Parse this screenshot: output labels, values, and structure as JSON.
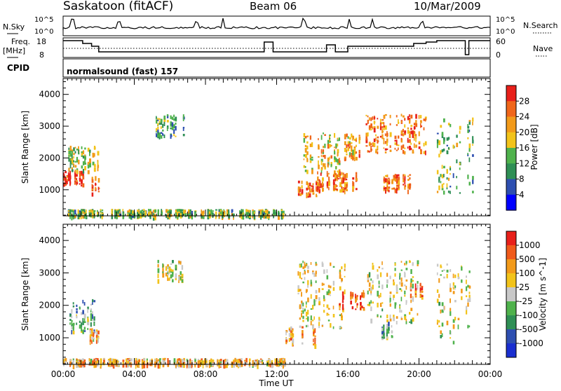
{
  "header": {
    "station": "Saskatoon (fitACF)",
    "beam": "Beam 06",
    "date": "10/Mar/2009"
  },
  "top_panels": {
    "nsky_label": "N.Sky",
    "nsky_scale_top": "10^5",
    "nsky_scale_bottom": "10^0",
    "nsearch_label": "N.Search",
    "nsearch_scale_top": "10^5",
    "nsearch_scale_bottom": "10^0",
    "freq_label": "Freq.",
    "freq_unit": "[MHz]",
    "freq_ticks": [
      "18",
      "8"
    ],
    "nave_label": "Nave",
    "nave_ticks": [
      "60",
      "0"
    ],
    "cpid_label": "CPID",
    "cpid_text": "normalsound (fast) 157"
  },
  "colors": {
    "power": [
      "#0000ff",
      "#2e4fb0",
      "#2f8f55",
      "#4fb24c",
      "#f2c31a",
      "#f29a1a",
      "#f0661a",
      "#e8201a"
    ],
    "velocity": [
      "#e8201a",
      "#f05a1a",
      "#f29a1a",
      "#f2c31a",
      "#c8c8c8",
      "#4fb24c",
      "#2f8f55",
      "#2e4fb0",
      "#1a2fd0"
    ]
  },
  "chart_data": [
    {
      "type": "heatmap",
      "title": "Power",
      "xlabel": "Time UT",
      "ylabel": "Slant Range [km]",
      "xlim": [
        "00:00",
        "24:00"
      ],
      "ylim": [
        180,
        4500
      ],
      "x_ticks": [
        "00:00",
        "04:00",
        "08:00",
        "12:00",
        "16:00",
        "20:00",
        "00:00"
      ],
      "y_ticks": [
        1000,
        2000,
        3000,
        4000
      ],
      "colorbar": {
        "label": "Power [dB]",
        "ticks": [
          "4",
          "8",
          "12",
          "16",
          "20",
          "24",
          "28"
        ]
      },
      "echo_regions": [
        {
          "t0": 0.0,
          "t1": 1.2,
          "r0": 1150,
          "r1": 1600,
          "level": 0.95
        },
        {
          "t0": 0.2,
          "t1": 2.0,
          "r0": 1600,
          "r1": 2400,
          "level": 0.5
        },
        {
          "t0": 1.6,
          "t1": 2.0,
          "r0": 900,
          "r1": 1500,
          "level": 0.85
        },
        {
          "t0": 5.2,
          "t1": 6.8,
          "r0": 2700,
          "r1": 3400,
          "level": 0.35
        },
        {
          "t0": 0.0,
          "t1": 12.5,
          "r0": 180,
          "r1": 400,
          "level": 0.45
        },
        {
          "t0": 13.2,
          "t1": 14.5,
          "r0": 800,
          "r1": 1300,
          "level": 0.8
        },
        {
          "t0": 13.5,
          "t1": 15.5,
          "r0": 1600,
          "r1": 2800,
          "level": 0.6
        },
        {
          "t0": 14.0,
          "t1": 16.5,
          "r0": 1000,
          "r1": 1600,
          "level": 0.75
        },
        {
          "t0": 15.8,
          "t1": 17.0,
          "r0": 2000,
          "r1": 2800,
          "level": 0.7
        },
        {
          "t0": 17.0,
          "t1": 20.5,
          "r0": 2200,
          "r1": 3400,
          "level": 0.75
        },
        {
          "t0": 18.0,
          "t1": 19.5,
          "r0": 1000,
          "r1": 1500,
          "level": 0.8
        },
        {
          "t0": 21.0,
          "t1": 23.0,
          "r0": 900,
          "r1": 3300,
          "level": 0.45
        }
      ]
    },
    {
      "type": "heatmap",
      "title": "Velocity",
      "xlabel": "Time UT",
      "ylabel": "Slant Range [km]",
      "xlim": [
        "00:00",
        "24:00"
      ],
      "ylim": [
        180,
        4500
      ],
      "x_ticks": [
        "00:00",
        "04:00",
        "08:00",
        "12:00",
        "16:00",
        "20:00",
        "00:00"
      ],
      "y_ticks": [
        1000,
        2000,
        3000,
        4000
      ],
      "colorbar": {
        "label": "Velocity [m s^-1]",
        "ticks": [
          "1000",
          "500",
          "100",
          "25",
          "-25",
          "-100",
          "-500",
          "-1000"
        ]
      },
      "echo_regions": [
        {
          "t0": 0.0,
          "t1": 1.8,
          "r0": 1200,
          "r1": 2200,
          "level": 0.62
        },
        {
          "t0": 1.4,
          "t1": 2.0,
          "r0": 900,
          "r1": 1300,
          "level": 0.35
        },
        {
          "t0": 5.3,
          "t1": 6.8,
          "r0": 2800,
          "r1": 3400,
          "level": 0.45
        },
        {
          "t0": 0.0,
          "t1": 12.5,
          "r0": 180,
          "r1": 380,
          "level": 0.35
        },
        {
          "t0": 12.5,
          "t1": 14.5,
          "r0": 800,
          "r1": 1400,
          "level": 0.3
        },
        {
          "t0": 13.0,
          "t1": 16.0,
          "r0": 1300,
          "r1": 3400,
          "level": 0.45
        },
        {
          "t0": 15.5,
          "t1": 17.0,
          "r0": 1900,
          "r1": 2500,
          "level": 0.15
        },
        {
          "t0": 19.5,
          "t1": 20.3,
          "r0": 2300,
          "r1": 2700,
          "level": 0.2
        },
        {
          "t0": 17.0,
          "t1": 20.0,
          "r0": 1500,
          "r1": 3400,
          "level": 0.45
        },
        {
          "t0": 17.8,
          "t1": 18.5,
          "r0": 1000,
          "r1": 1500,
          "level": 0.62
        },
        {
          "t0": 21.0,
          "t1": 23.0,
          "r0": 900,
          "r1": 3300,
          "level": 0.45
        }
      ]
    }
  ]
}
